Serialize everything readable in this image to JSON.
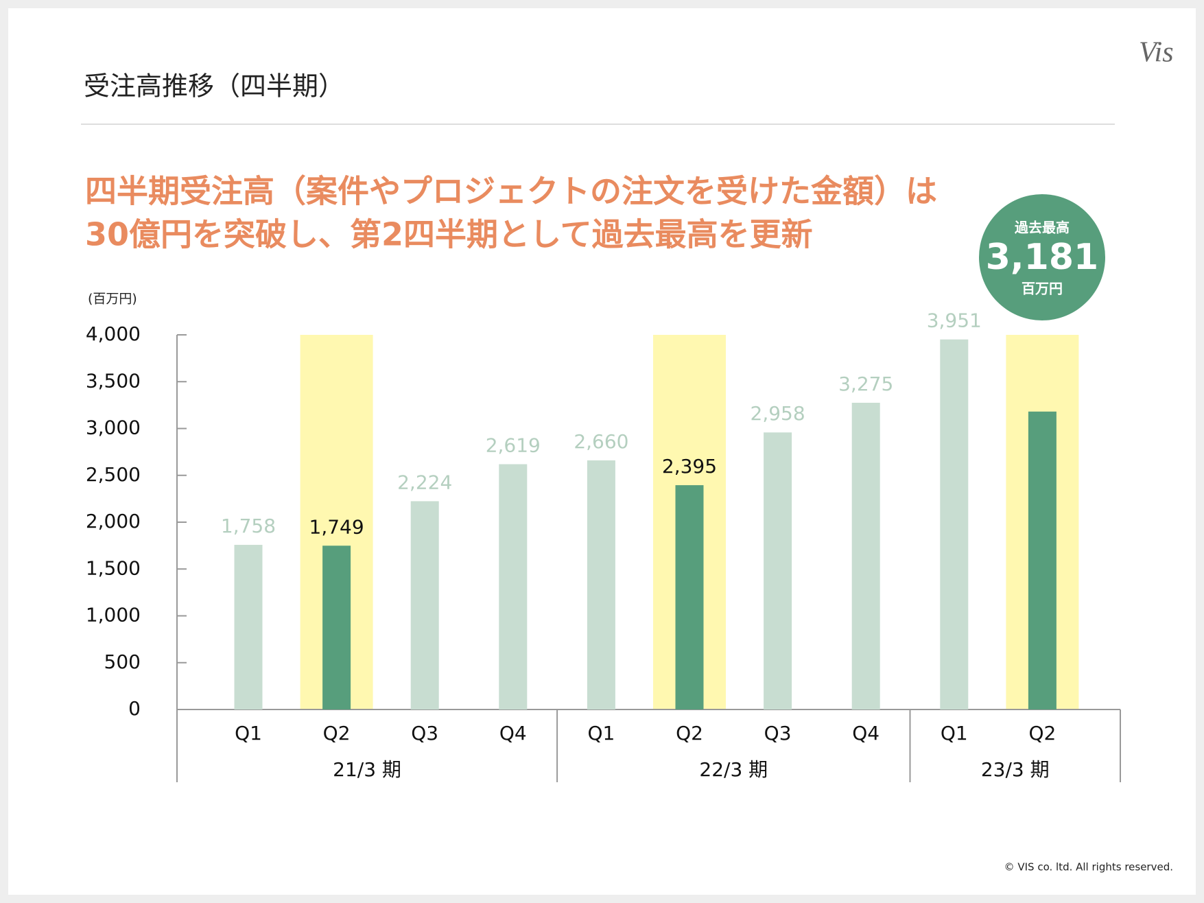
{
  "header": {
    "title": "受注高推移（四半期）",
    "logo": "Vis"
  },
  "headline": [
    "四半期受注高（案件やプロジェクトの注文を受けた金額）は",
    "30億円を突破し、第2四半期として過去最高を更新"
  ],
  "badge": {
    "caption": "過去最高",
    "value": "3,181",
    "unit": "百万円"
  },
  "chart_data": {
    "type": "bar",
    "y_label": "(百万円)",
    "categories": [
      "Q1",
      "Q2",
      "Q3",
      "Q4",
      "Q1",
      "Q2",
      "Q3",
      "Q4",
      "Q1",
      "Q2"
    ],
    "values": [
      1758,
      1749,
      2224,
      2619,
      2660,
      2395,
      2958,
      3275,
      3951,
      3181
    ],
    "value_labels": [
      "1,758",
      "1,749",
      "2,224",
      "2,619",
      "2,660",
      "2,395",
      "2,958",
      "3,275",
      "3,951",
      null
    ],
    "highlight": [
      false,
      true,
      false,
      false,
      false,
      true,
      false,
      false,
      false,
      true
    ],
    "groups": [
      {
        "label": "21/3 期",
        "size": 4
      },
      {
        "label": "22/3 期",
        "size": 4
      },
      {
        "label": "23/3 期",
        "size": 2
      }
    ],
    "color": "#c8ddd1",
    "highlight_color": "#579e7c",
    "band_color": "#fff8b0",
    "ylim": [
      0,
      4000
    ],
    "yticks": [
      0,
      {
        "value": 500,
        "label": "500"
      },
      {
        "value": 1000,
        "label": "1,000"
      },
      {
        "value": 1500,
        "label": "1,500"
      },
      {
        "value": 2000,
        "label": "2,000"
      },
      {
        "value": 2500,
        "label": "2,500"
      },
      {
        "value": 3000,
        "label": "3,000"
      },
      {
        "value": 3500,
        "label": "3,500"
      },
      {
        "value": 4000,
        "label": "4,000"
      }
    ]
  },
  "footer": {
    "copyright": "© VIS co. ltd. All rights reserved."
  }
}
